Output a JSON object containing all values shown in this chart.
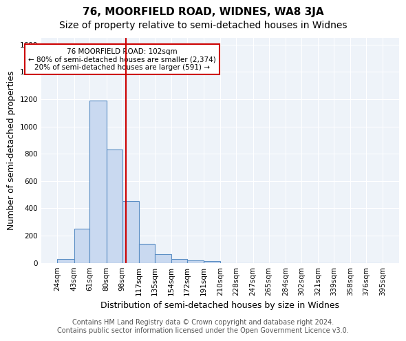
{
  "title": "76, MOORFIELD ROAD, WIDNES, WA8 3JA",
  "subtitle": "Size of property relative to semi-detached houses in Widnes",
  "xlabel": "Distribution of semi-detached houses by size in Widnes",
  "ylabel": "Number of semi-detached properties",
  "footer_line1": "Contains HM Land Registry data © Crown copyright and database right 2024.",
  "footer_line2": "Contains public sector information licensed under the Open Government Licence v3.0.",
  "bin_labels": [
    "24sqm",
    "43sqm",
    "61sqm",
    "80sqm",
    "98sqm",
    "117sqm",
    "135sqm",
    "154sqm",
    "172sqm",
    "191sqm",
    "210sqm",
    "228sqm",
    "247sqm",
    "265sqm",
    "284sqm",
    "302sqm",
    "321sqm",
    "339sqm",
    "358sqm",
    "376sqm",
    "395sqm"
  ],
  "bin_edges": [
    24,
    43,
    61,
    80,
    98,
    117,
    135,
    154,
    172,
    191,
    210,
    228,
    247,
    265,
    284,
    302,
    321,
    339,
    358,
    376,
    395
  ],
  "bin_counts": [
    28,
    253,
    1192,
    830,
    455,
    138,
    65,
    28,
    18,
    13,
    0,
    0,
    0,
    0,
    0,
    0,
    0,
    0,
    0,
    0
  ],
  "bar_color": "#c9d9f0",
  "bar_edge_color": "#5b8ec4",
  "vline_x": 102,
  "vline_color": "#cc0000",
  "annotation_text": "76 MOORFIELD ROAD: 102sqm\n← 80% of semi-detached houses are smaller (2,374)\n20% of semi-detached houses are larger (591) →",
  "annotation_box_color": "white",
  "annotation_box_edge": "#cc0000",
  "ylim": [
    0,
    1650
  ],
  "yticks": [
    0,
    200,
    400,
    600,
    800,
    1000,
    1200,
    1400,
    1600
  ],
  "bg_color": "#eef3f9",
  "grid_color": "white",
  "title_fontsize": 11,
  "subtitle_fontsize": 10,
  "axis_label_fontsize": 9,
  "tick_fontsize": 7.5,
  "footer_fontsize": 7
}
